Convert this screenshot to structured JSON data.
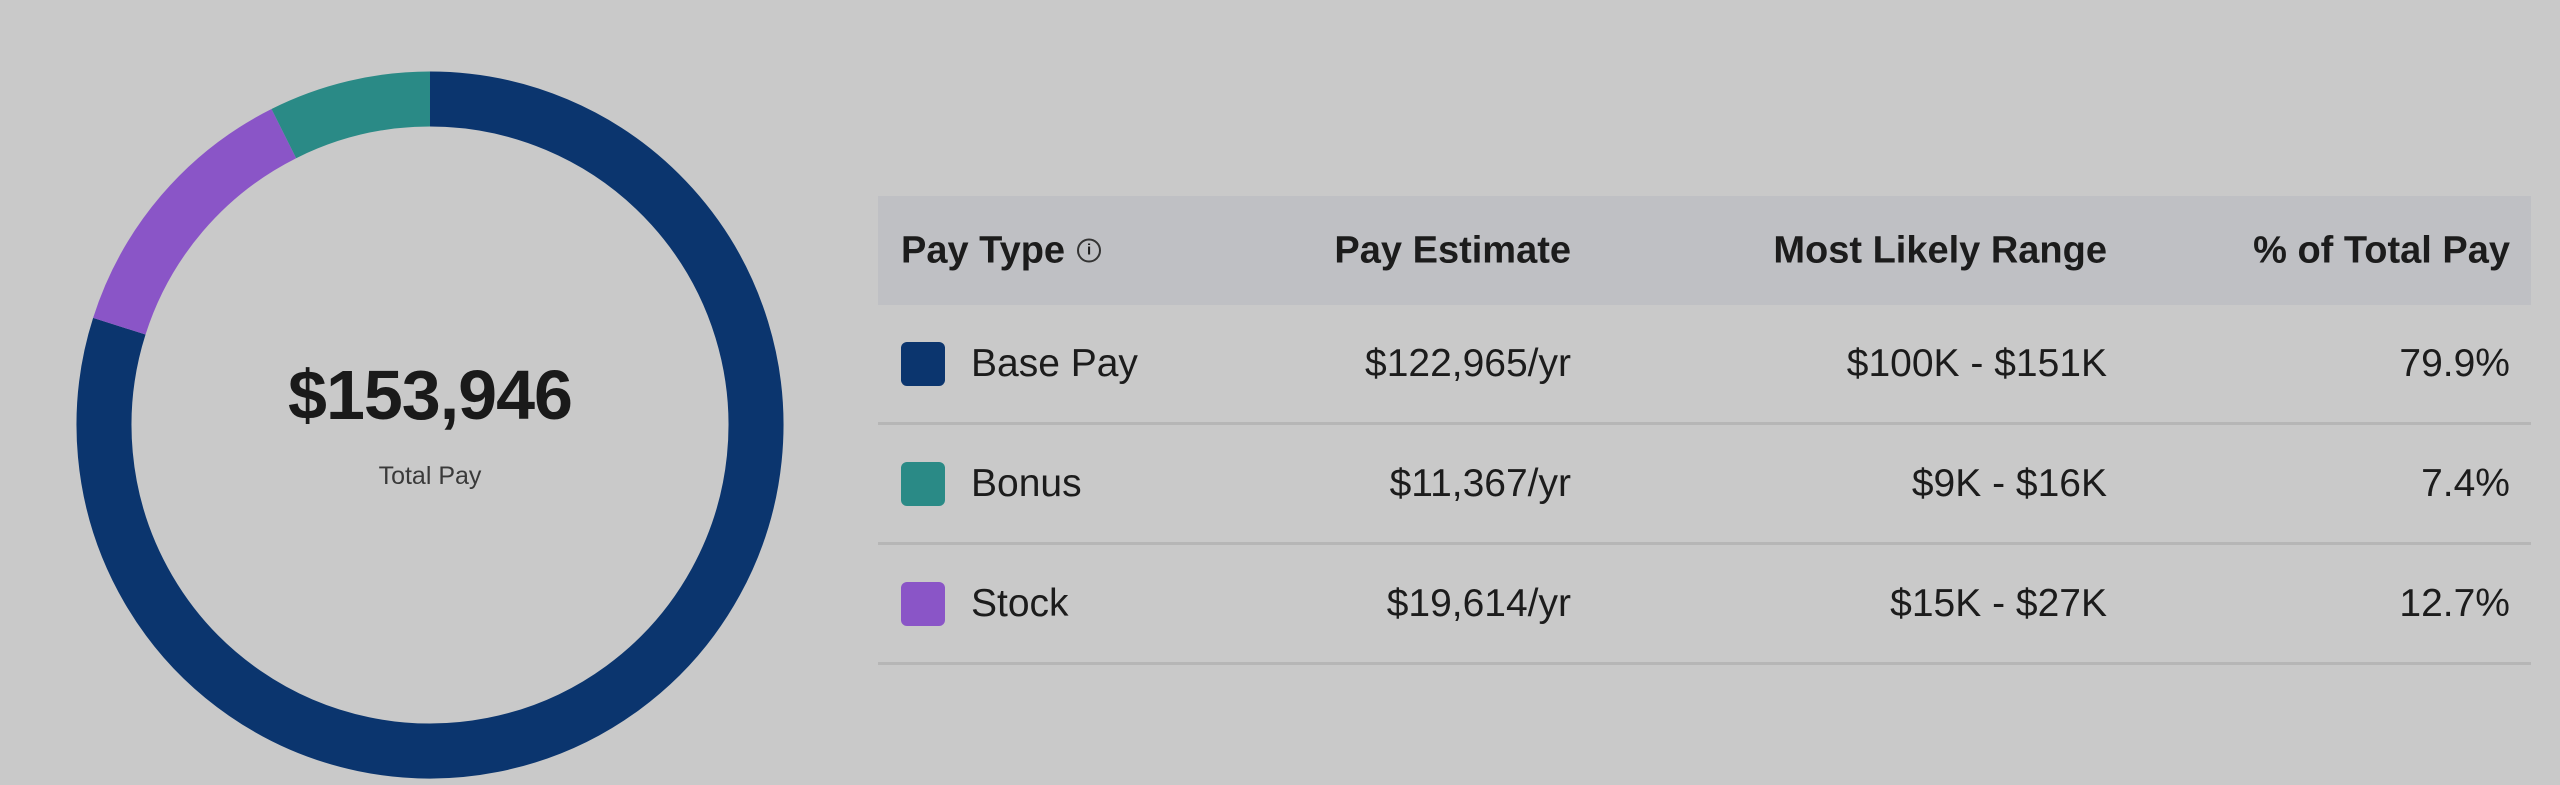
{
  "chart_data": {
    "type": "pie",
    "style": "donut",
    "center_value": "$153,946",
    "center_label": "Total Pay",
    "slices": [
      {
        "label": "Base Pay",
        "percent": 79.9,
        "color": "#0b356e"
      },
      {
        "label": "Stock",
        "percent": 12.7,
        "color": "#8a55c7"
      },
      {
        "label": "Bonus",
        "percent": 7.4,
        "color": "#2a8a86"
      }
    ]
  },
  "table": {
    "headers": [
      "Pay Type",
      "Pay Estimate",
      "Most Likely Range",
      "% of Total Pay"
    ],
    "info_icon": "info-circle-icon",
    "rows": [
      {
        "type": "Base Pay",
        "estimate": "$122,965/yr",
        "range": "$100K - $151K",
        "percent": "79.9%",
        "color": "#0b356e"
      },
      {
        "type": "Bonus",
        "estimate": "$11,367/yr",
        "range": "$9K - $16K",
        "percent": "7.4%",
        "color": "#2a8a86"
      },
      {
        "type": "Stock",
        "estimate": "$19,614/yr",
        "range": "$15K - $27K",
        "percent": "12.7%",
        "color": "#8a55c7"
      }
    ]
  }
}
